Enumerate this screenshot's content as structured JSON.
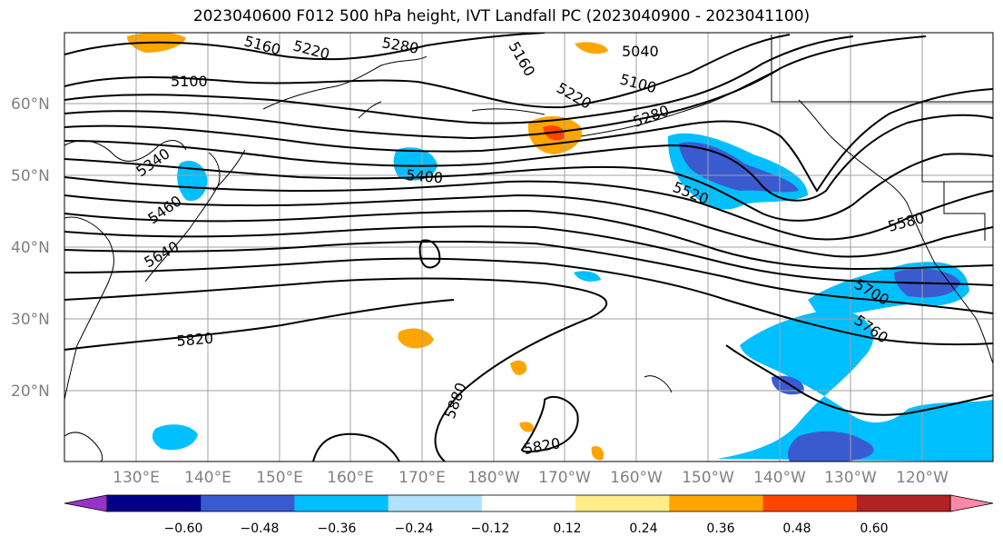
{
  "title": "2023040600 F012 500 hPa height, IVT Landfall PC (2023040900 - 2023041100)",
  "lat_labels": [
    "60°N",
    "50°N",
    "40°N",
    "30°N",
    "20°N"
  ],
  "lon_labels": [
    "130°E",
    "140°E",
    "150°E",
    "160°E",
    "170°E",
    "180°W",
    "170°W",
    "160°W",
    "150°W",
    "140°W",
    "130°W",
    "120°W"
  ],
  "colorbar": {
    "ticks": [
      "−0.60",
      "−0.48",
      "−0.36",
      "−0.24",
      "−0.12",
      "0.12",
      "0.24",
      "0.36",
      "0.48",
      "0.60"
    ],
    "colors": [
      "#9932CC",
      "#00008B",
      "#3A5BD0",
      "#00BFFF",
      "#B0E2FF",
      "#FFFFFF",
      "#FFEC8B",
      "#FFA500",
      "#FF4500",
      "#B22222",
      "#FF88AA"
    ]
  },
  "contour_labels": [
    "5100",
    "5220",
    "5280",
    "5040",
    "5100",
    "5220",
    "5280",
    "5340",
    "5400",
    "5460",
    "5520",
    "5580",
    "5640",
    "5700",
    "5760",
    "5820",
    "5880",
    "5820",
    "5160",
    "5160"
  ]
}
